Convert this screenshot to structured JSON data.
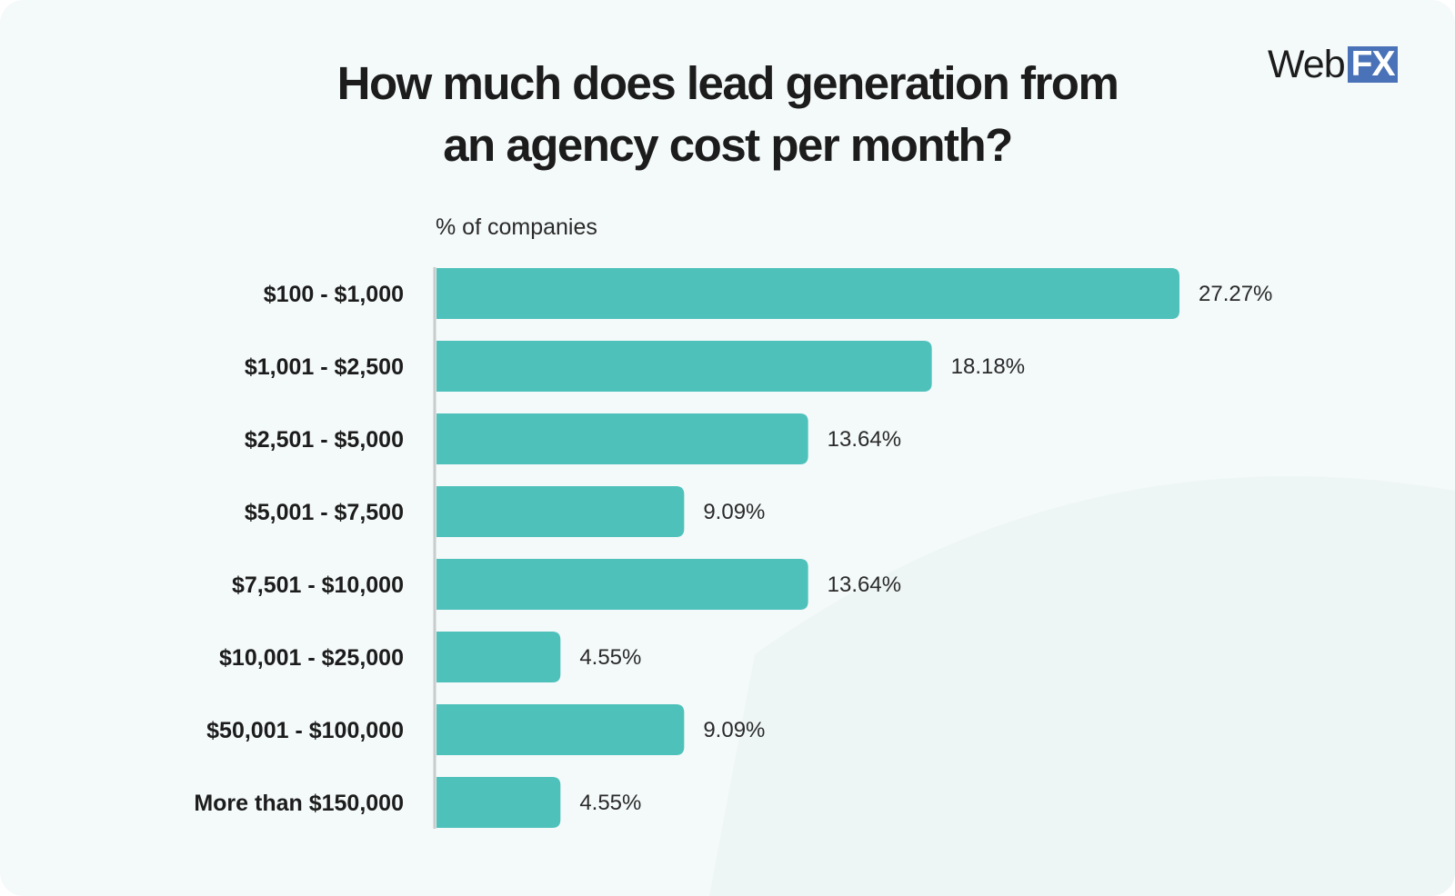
{
  "header": {
    "title_line1": "How much does lead generation from",
    "title_line2": "an agency cost per month?",
    "logo_text": "Web",
    "logo_badge": "FX"
  },
  "colors": {
    "bar": "#4fc1bb",
    "axis": "#c8cccc",
    "background": "#f4f9f9"
  },
  "chart_data": {
    "type": "bar",
    "orientation": "horizontal",
    "title": "How much does lead generation from an agency cost per month?",
    "xlabel": "% of companies",
    "ylabel": "",
    "categories": [
      "$100 - $1,000",
      "$1,001 - $2,500",
      "$2,501 - $5,000",
      "$5,001 - $7,500",
      "$7,501 - $10,000",
      "$10,001 - $25,000",
      "$50,001 - $100,000",
      "More than $150,000"
    ],
    "values": [
      27.27,
      18.18,
      13.64,
      9.09,
      13.64,
      4.55,
      9.09,
      4.55
    ],
    "value_labels": [
      "27.27%",
      "18.18%",
      "13.64%",
      "9.09%",
      "13.64%",
      "4.55%",
      "9.09%",
      "4.55%"
    ],
    "xlim": [
      0,
      27.27
    ],
    "grid": false,
    "legend": "none"
  }
}
